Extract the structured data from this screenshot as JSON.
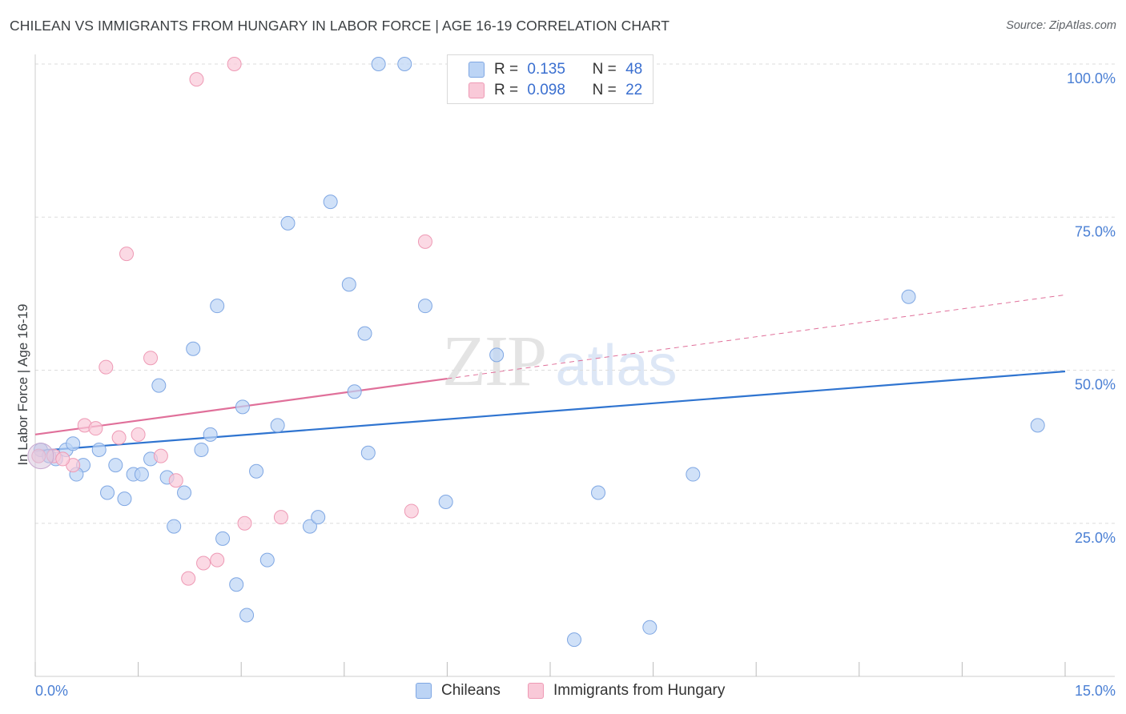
{
  "header": {
    "title": "CHILEAN VS IMMIGRANTS FROM HUNGARY IN LABOR FORCE | AGE 16-19 CORRELATION CHART",
    "source": "Source: ZipAtlas.com"
  },
  "watermark": {
    "zip": "ZIP",
    "atlas": "atlas"
  },
  "legend_top": {
    "rows": [
      {
        "r_label": "R =",
        "r_value": "0.135",
        "n_label": "N =",
        "n_value": "48"
      },
      {
        "r_label": "R =",
        "r_value": "0.098",
        "n_label": "N =",
        "n_value": "22"
      }
    ]
  },
  "legend_bottom": {
    "items": [
      "Chileans",
      "Immigrants from Hungary"
    ]
  },
  "colors": {
    "blue_fill": "#bcd4f5",
    "blue_stroke": "#7fa7e3",
    "blue_line": "#2f74d0",
    "pink_fill": "#f9c9d8",
    "pink_stroke": "#ee9ab5",
    "pink_line": "#e0709a",
    "grid": "#dddddd",
    "tick_text": "#4a7fd4"
  },
  "chart_data": {
    "type": "scatter",
    "title": "CHILEAN VS IMMIGRANTS FROM HUNGARY IN LABOR FORCE | AGE 16-19 CORRELATION CHART",
    "xlabel": "",
    "ylabel": "In Labor Force | Age 16-19",
    "xlim": [
      0,
      15
    ],
    "ylim": [
      0,
      100
    ],
    "x_ticks": [
      "0.0%",
      "15.0%"
    ],
    "y_ticks": [
      "100.0%",
      "75.0%",
      "50.0%",
      "25.0%"
    ],
    "y_tick_values": [
      100,
      75,
      50,
      25
    ],
    "grid": true,
    "legend_position": "top-center",
    "series": [
      {
        "name": "Chileans",
        "r": 0.135,
        "n": 48,
        "trend": {
          "x": [
            0,
            15
          ],
          "y": [
            36.8,
            49.8
          ]
        },
        "points": [
          {
            "x": 0.08,
            "y": 37
          },
          {
            "x": 0.3,
            "y": 35.5
          },
          {
            "x": 0.45,
            "y": 37
          },
          {
            "x": 0.55,
            "y": 38
          },
          {
            "x": 0.7,
            "y": 34.5
          },
          {
            "x": 0.6,
            "y": 33
          },
          {
            "x": 0.93,
            "y": 37
          },
          {
            "x": 1.05,
            "y": 30
          },
          {
            "x": 1.17,
            "y": 34.5
          },
          {
            "x": 1.3,
            "y": 29
          },
          {
            "x": 1.43,
            "y": 33
          },
          {
            "x": 1.55,
            "y": 33
          },
          {
            "x": 1.68,
            "y": 35.5
          },
          {
            "x": 1.8,
            "y": 47.5
          },
          {
            "x": 1.92,
            "y": 32.5
          },
          {
            "x": 2.02,
            "y": 24.5
          },
          {
            "x": 2.17,
            "y": 30
          },
          {
            "x": 2.3,
            "y": 53.5
          },
          {
            "x": 2.42,
            "y": 37
          },
          {
            "x": 2.55,
            "y": 39.5
          },
          {
            "x": 2.65,
            "y": 60.5
          },
          {
            "x": 2.73,
            "y": 22.5
          },
          {
            "x": 2.93,
            "y": 15
          },
          {
            "x": 3.02,
            "y": 44
          },
          {
            "x": 3.08,
            "y": 10
          },
          {
            "x": 3.22,
            "y": 33.5
          },
          {
            "x": 3.38,
            "y": 19
          },
          {
            "x": 3.53,
            "y": 41
          },
          {
            "x": 3.68,
            "y": 74
          },
          {
            "x": 4.0,
            "y": 24.5
          },
          {
            "x": 4.12,
            "y": 26
          },
          {
            "x": 4.3,
            "y": 77.5
          },
          {
            "x": 4.57,
            "y": 64
          },
          {
            "x": 4.65,
            "y": 46.5
          },
          {
            "x": 4.8,
            "y": 56
          },
          {
            "x": 4.85,
            "y": 36.5
          },
          {
            "x": 5.0,
            "y": 100
          },
          {
            "x": 5.38,
            "y": 100
          },
          {
            "x": 5.68,
            "y": 60.5
          },
          {
            "x": 5.98,
            "y": 28.5
          },
          {
            "x": 6.72,
            "y": 52.5
          },
          {
            "x": 7.85,
            "y": 6
          },
          {
            "x": 8.2,
            "y": 30
          },
          {
            "x": 8.95,
            "y": 8
          },
          {
            "x": 9.58,
            "y": 33
          },
          {
            "x": 12.72,
            "y": 62
          },
          {
            "x": 14.6,
            "y": 41
          },
          {
            "x": 0.2,
            "y": 36
          }
        ]
      },
      {
        "name": "Immigrants from Hungary",
        "r": 0.098,
        "n": 22,
        "trend": {
          "x": [
            0,
            15
          ],
          "y": [
            39.5,
            62.3
          ],
          "solid_until": 6.0
        },
        "points": [
          {
            "x": 0.05,
            "y": 36
          },
          {
            "x": 0.27,
            "y": 36
          },
          {
            "x": 0.55,
            "y": 34.5
          },
          {
            "x": 0.72,
            "y": 41
          },
          {
            "x": 0.88,
            "y": 40.5
          },
          {
            "x": 1.03,
            "y": 50.5
          },
          {
            "x": 1.22,
            "y": 39
          },
          {
            "x": 1.33,
            "y": 69
          },
          {
            "x": 1.5,
            "y": 39.5
          },
          {
            "x": 1.68,
            "y": 52
          },
          {
            "x": 1.83,
            "y": 36
          },
          {
            "x": 2.05,
            "y": 32
          },
          {
            "x": 2.23,
            "y": 16
          },
          {
            "x": 2.35,
            "y": 97.5
          },
          {
            "x": 2.45,
            "y": 18.5
          },
          {
            "x": 2.65,
            "y": 19
          },
          {
            "x": 2.9,
            "y": 100
          },
          {
            "x": 3.05,
            "y": 25
          },
          {
            "x": 3.58,
            "y": 26
          },
          {
            "x": 5.48,
            "y": 27
          },
          {
            "x": 5.68,
            "y": 71
          },
          {
            "x": 0.4,
            "y": 35.5
          }
        ]
      }
    ]
  }
}
